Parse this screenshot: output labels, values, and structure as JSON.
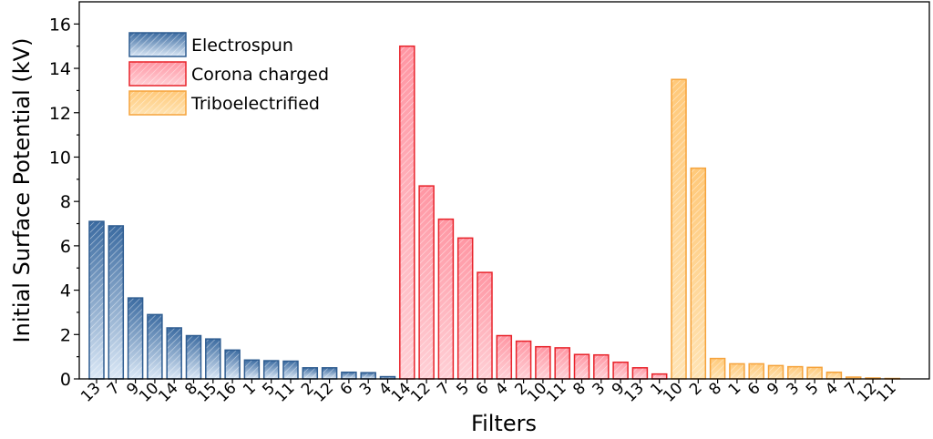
{
  "chart_data": {
    "type": "bar",
    "xlabel": "Filters",
    "ylabel": "Initial Surface Potential (kV)",
    "ylim": [
      0,
      17
    ],
    "yticks": [
      0,
      2,
      4,
      6,
      8,
      10,
      12,
      14,
      16
    ],
    "legend_position": "top-left",
    "series": [
      {
        "name": "Electrospun",
        "color": "#2f5d91",
        "fill_light": "#dbe8f6",
        "fill_dark": "#3a6aa0",
        "categories": [
          "13",
          "7",
          "9",
          "10",
          "14",
          "8",
          "15",
          "16",
          "1",
          "5",
          "11",
          "2",
          "12",
          "6",
          "3",
          "4"
        ],
        "values": [
          7.1,
          6.9,
          3.65,
          2.9,
          2.3,
          1.95,
          1.8,
          1.3,
          0.85,
          0.82,
          0.8,
          0.5,
          0.5,
          0.3,
          0.28,
          0.1
        ]
      },
      {
        "name": "Corona charged",
        "color": "#e8232a",
        "fill_light": "#ffd0d6",
        "fill_dark": "#ff96a3",
        "categories": [
          "14",
          "12",
          "7",
          "5",
          "6",
          "4",
          "2",
          "10",
          "11",
          "8",
          "3",
          "9",
          "13",
          "1"
        ],
        "values": [
          15.0,
          8.7,
          7.2,
          6.35,
          4.8,
          1.95,
          1.7,
          1.45,
          1.4,
          1.1,
          1.08,
          0.75,
          0.5,
          0.22
        ]
      },
      {
        "name": "Triboelectrified",
        "color": "#f5a33c",
        "fill_light": "#ffe3b3",
        "fill_dark": "#ffc97a",
        "categories": [
          "10",
          "2",
          "8",
          "1",
          "6",
          "9",
          "3",
          "5",
          "4",
          "7",
          "12",
          "11"
        ],
        "values": [
          13.5,
          9.5,
          0.92,
          0.68,
          0.68,
          0.6,
          0.55,
          0.52,
          0.3,
          0.08,
          0.04,
          0.02
        ]
      }
    ]
  }
}
